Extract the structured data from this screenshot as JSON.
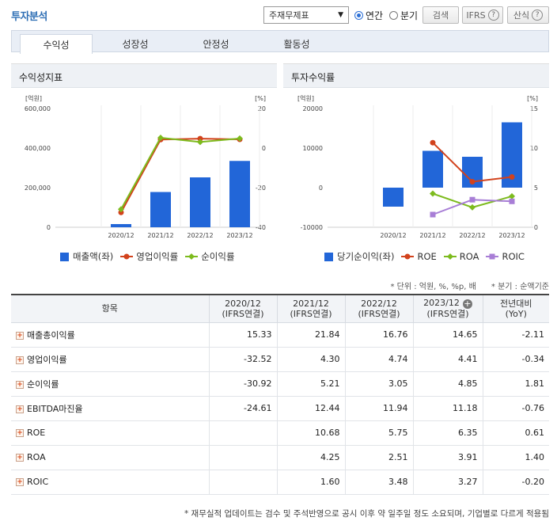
{
  "title": "투자분석",
  "toolbar": {
    "select_value": "주재무제표",
    "radio_annual": "연간",
    "radio_quarter": "분기",
    "search": "검색",
    "ifrs": "IFRS",
    "formula": "산식",
    "help_glyph": "?"
  },
  "tabs": [
    "수익성",
    "성장성",
    "안정성",
    "활동성"
  ],
  "left_panel": {
    "title": "수익성지표",
    "legend": [
      "매출액(좌)",
      "영업이익률",
      "순이익률"
    ]
  },
  "right_panel": {
    "title": "투자수익률",
    "legend": [
      "당기순이익(좌)",
      "ROE",
      "ROA",
      "ROIC"
    ]
  },
  "chart_data": [
    {
      "type": "bar",
      "categories": [
        "2020/12",
        "2021/12",
        "2022/12",
        "2023/12"
      ],
      "y_left": {
        "unit": "[억원]",
        "ticks": [
          "600,000",
          "400,000",
          "200,000",
          "0"
        ],
        "range": [
          0,
          600000
        ]
      },
      "y_right": {
        "unit": "[%]",
        "ticks": [
          "20",
          "0",
          "-20",
          "-40"
        ],
        "range": [
          -40,
          20
        ]
      },
      "series": [
        {
          "name": "매출액(좌)",
          "kind": "bar",
          "axis": "left",
          "values": [
            16000,
            178000,
            252000,
            335000
          ],
          "color": "#2266d8"
        },
        {
          "name": "영업이익률",
          "kind": "line",
          "axis": "right",
          "values": [
            -32.52,
            4.3,
            4.74,
            4.41
          ],
          "color": "#d2421c"
        },
        {
          "name": "순이익률",
          "kind": "line",
          "axis": "right",
          "values": [
            -30.92,
            5.21,
            3.05,
            4.85
          ],
          "color": "#7dbb1e"
        }
      ]
    },
    {
      "type": "bar",
      "categories": [
        "2020/12",
        "2021/12",
        "2022/12",
        "2023/12"
      ],
      "y_left": {
        "unit": "[억원]",
        "ticks": [
          "20000",
          "10000",
          "0",
          "-10000"
        ],
        "range": [
          -10000,
          20000
        ]
      },
      "y_right": {
        "unit": "[%]",
        "ticks": [
          "15",
          "10",
          "5",
          "0"
        ],
        "range": [
          0,
          15
        ]
      },
      "series": [
        {
          "name": "당기순이익(좌)",
          "kind": "bar",
          "axis": "left",
          "values": [
            -4800,
            9300,
            7800,
            16500
          ],
          "color": "#2266d8"
        },
        {
          "name": "ROE",
          "kind": "line",
          "axis": "right",
          "values": [
            null,
            10.68,
            5.75,
            6.35
          ],
          "color": "#d2421c"
        },
        {
          "name": "ROA",
          "kind": "line",
          "axis": "right",
          "values": [
            null,
            4.25,
            2.51,
            3.91
          ],
          "color": "#7dbb1e"
        },
        {
          "name": "ROIC",
          "kind": "line",
          "axis": "right",
          "values": [
            null,
            1.6,
            3.48,
            3.27
          ],
          "color": "#a87ed6"
        }
      ]
    }
  ],
  "notes": {
    "unit": "* 단위 : 억원, %, %p, 배",
    "quarter": "* 분기 : 순액기준"
  },
  "table": {
    "headers": [
      {
        "l1": "항목",
        "l2": ""
      },
      {
        "l1": "2020/12",
        "l2": "(IFRS연결)"
      },
      {
        "l1": "2021/12",
        "l2": "(IFRS연결)"
      },
      {
        "l1": "2022/12",
        "l2": "(IFRS연결)"
      },
      {
        "l1": "2023/12",
        "l2": "(IFRS연결)"
      },
      {
        "l1": "전년대비",
        "l2": "(YoY)"
      }
    ],
    "rows": [
      {
        "name": "매출총이익률",
        "cells": [
          "15.33",
          "21.84",
          "16.76",
          "14.65",
          "-2.11"
        ]
      },
      {
        "name": "영업이익률",
        "cells": [
          "-32.52",
          "4.30",
          "4.74",
          "4.41",
          "-0.34"
        ]
      },
      {
        "name": "순이익률",
        "cells": [
          "-30.92",
          "5.21",
          "3.05",
          "4.85",
          "1.81"
        ]
      },
      {
        "name": "EBITDA마진율",
        "cells": [
          "-24.61",
          "12.44",
          "11.94",
          "11.18",
          "-0.76"
        ]
      },
      {
        "name": "ROE",
        "cells": [
          "",
          "10.68",
          "5.75",
          "6.35",
          "0.61"
        ]
      },
      {
        "name": "ROA",
        "cells": [
          "",
          "4.25",
          "2.51",
          "3.91",
          "1.40"
        ]
      },
      {
        "name": "ROIC",
        "cells": [
          "",
          "1.60",
          "3.48",
          "3.27",
          "-0.20"
        ]
      }
    ]
  },
  "footnote": "* 재무실적 업데이트는 검수 및 주석반영으로 공시 이후 약 일주일 정도 소요되며, 기업별로 다르게 적용됨"
}
